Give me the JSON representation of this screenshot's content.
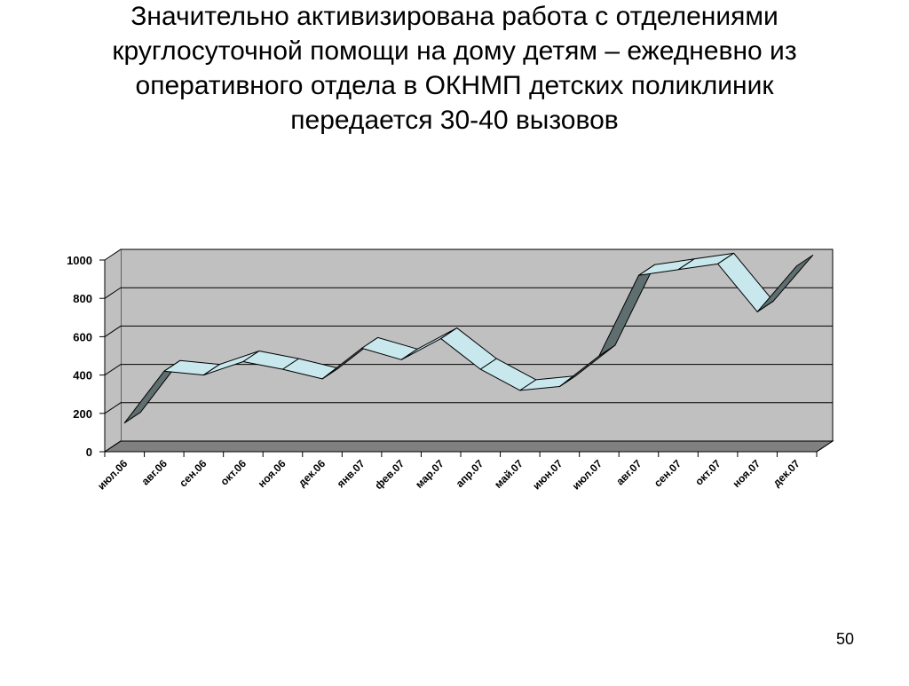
{
  "chart_data": {
    "type": "line3d",
    "title": [
      "Значительно активизирована работа с отделениями",
      "круглосуточной помощи на дому детям – ежедневно из",
      "оперативного отдела в ОКНМП детских поликлиник",
      "передается 30-40 вызовов"
    ],
    "categories": [
      "июл.06",
      "авг.06",
      "сен.06",
      "окт.06",
      "ноя.06",
      "дек.06",
      "янв.07",
      "фев.07",
      "мар.07",
      "апр.07",
      "май.07",
      "июн.07",
      "июл.07",
      "авг.07",
      "сен.07",
      "окт.07",
      "ноя.07",
      "дек.07"
    ],
    "values": [
      150,
      420,
      400,
      470,
      430,
      380,
      540,
      480,
      590,
      430,
      320,
      340,
      500,
      920,
      950,
      980,
      730,
      970
    ],
    "color": "#c8e8ee",
    "shade_color": "#5f6f70",
    "ylim": [
      0,
      1000
    ],
    "yticks": [
      0,
      200,
      400,
      600,
      800,
      1000
    ],
    "grid": true
  },
  "slide_number": 50
}
